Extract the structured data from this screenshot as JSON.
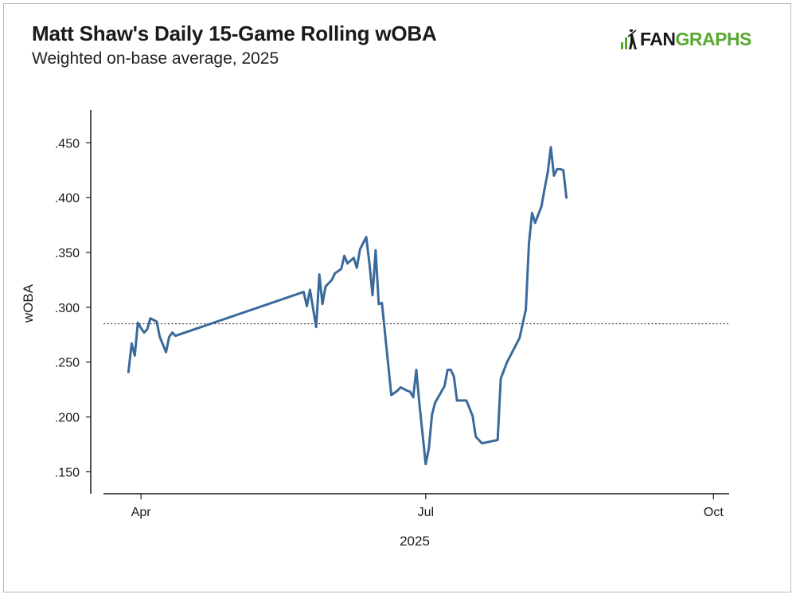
{
  "header": {
    "title": "Matt Shaw's Daily 15-Game Rolling wOBA",
    "subtitle": "Weighted on-base average, 2025"
  },
  "logo": {
    "fan": "FAN",
    "graphs": "GRAPHS",
    "fan_color": "#1a1a1a",
    "graphs_color": "#5aa832"
  },
  "colors": {
    "line": "#3a6a9b",
    "axis": "#1a1a1a",
    "reference_line": "#333333"
  },
  "chart_data": {
    "type": "line",
    "title": "Matt Shaw's Daily 15-Game Rolling wOBA",
    "subtitle": "Weighted on-base average, 2025",
    "xlabel": "2025",
    "ylabel": "wOBA",
    "xlim": [
      "2025-03-20",
      "2025-10-06"
    ],
    "ylim": [
      0.13,
      0.48
    ],
    "x_ticks": [
      {
        "date": "2025-04-01",
        "label": "Apr"
      },
      {
        "date": "2025-07-01",
        "label": "Jul"
      },
      {
        "date": "2025-10-01",
        "label": "Oct"
      }
    ],
    "y_ticks": [
      {
        "value": 0.15,
        "label": ".150"
      },
      {
        "value": 0.2,
        "label": ".200"
      },
      {
        "value": 0.25,
        "label": ".250"
      },
      {
        "value": 0.3,
        "label": ".300"
      },
      {
        "value": 0.35,
        "label": ".350"
      },
      {
        "value": 0.4,
        "label": ".400"
      },
      {
        "value": 0.45,
        "label": ".450"
      }
    ],
    "reference_line": {
      "value": 0.285,
      "style": "dotted"
    },
    "grid": false,
    "series": [
      {
        "points": [
          [
            "2025-03-28",
            0.241
          ],
          [
            "2025-03-29",
            0.267
          ],
          [
            "2025-03-30",
            0.256
          ],
          [
            "2025-03-31",
            0.286
          ],
          [
            "2025-04-01",
            0.281
          ],
          [
            "2025-04-02",
            0.277
          ],
          [
            "2025-04-03",
            0.28
          ],
          [
            "2025-04-04",
            0.29
          ],
          [
            "2025-04-06",
            0.287
          ],
          [
            "2025-04-07",
            0.273
          ],
          [
            "2025-04-09",
            0.259
          ],
          [
            "2025-04-10",
            0.273
          ],
          [
            "2025-04-11",
            0.277
          ],
          [
            "2025-04-12",
            0.274
          ],
          [
            "2025-05-23",
            0.314
          ],
          [
            "2025-05-24",
            0.301
          ],
          [
            "2025-05-25",
            0.316
          ],
          [
            "2025-05-27",
            0.282
          ],
          [
            "2025-05-28",
            0.33
          ],
          [
            "2025-05-29",
            0.303
          ],
          [
            "2025-05-30",
            0.319
          ],
          [
            "2025-06-01",
            0.325
          ],
          [
            "2025-06-02",
            0.331
          ],
          [
            "2025-06-04",
            0.335
          ],
          [
            "2025-06-05",
            0.347
          ],
          [
            "2025-06-06",
            0.34
          ],
          [
            "2025-06-08",
            0.345
          ],
          [
            "2025-06-09",
            0.336
          ],
          [
            "2025-06-10",
            0.353
          ],
          [
            "2025-06-12",
            0.364
          ],
          [
            "2025-06-13",
            0.34
          ],
          [
            "2025-06-14",
            0.311
          ],
          [
            "2025-06-15",
            0.352
          ],
          [
            "2025-06-16",
            0.303
          ],
          [
            "2025-06-17",
            0.304
          ],
          [
            "2025-06-20",
            0.22
          ],
          [
            "2025-06-22",
            0.224
          ],
          [
            "2025-06-23",
            0.227
          ],
          [
            "2025-06-25",
            0.224
          ],
          [
            "2025-06-26",
            0.223
          ],
          [
            "2025-06-27",
            0.218
          ],
          [
            "2025-06-28",
            0.243
          ],
          [
            "2025-06-29",
            0.212
          ],
          [
            "2025-07-01",
            0.157
          ],
          [
            "2025-07-02",
            0.171
          ],
          [
            "2025-07-03",
            0.202
          ],
          [
            "2025-07-04",
            0.213
          ],
          [
            "2025-07-06",
            0.223
          ],
          [
            "2025-07-07",
            0.228
          ],
          [
            "2025-07-08",
            0.243
          ],
          [
            "2025-07-09",
            0.243
          ],
          [
            "2025-07-10",
            0.237
          ],
          [
            "2025-07-11",
            0.215
          ],
          [
            "2025-07-14",
            0.215
          ],
          [
            "2025-07-16",
            0.201
          ],
          [
            "2025-07-17",
            0.182
          ],
          [
            "2025-07-19",
            0.176
          ],
          [
            "2025-07-24",
            0.179
          ],
          [
            "2025-07-25",
            0.235
          ],
          [
            "2025-07-27",
            0.25
          ],
          [
            "2025-07-31",
            0.272
          ],
          [
            "2025-08-02",
            0.298
          ],
          [
            "2025-08-03",
            0.358
          ],
          [
            "2025-08-04",
            0.386
          ],
          [
            "2025-08-05",
            0.377
          ],
          [
            "2025-08-07",
            0.392
          ],
          [
            "2025-08-08",
            0.408
          ],
          [
            "2025-08-09",
            0.423
          ],
          [
            "2025-08-10",
            0.446
          ],
          [
            "2025-08-11",
            0.42
          ],
          [
            "2025-08-12",
            0.426
          ],
          [
            "2025-08-13",
            0.426
          ],
          [
            "2025-08-14",
            0.425
          ],
          [
            "2025-08-15",
            0.4
          ]
        ]
      }
    ]
  }
}
